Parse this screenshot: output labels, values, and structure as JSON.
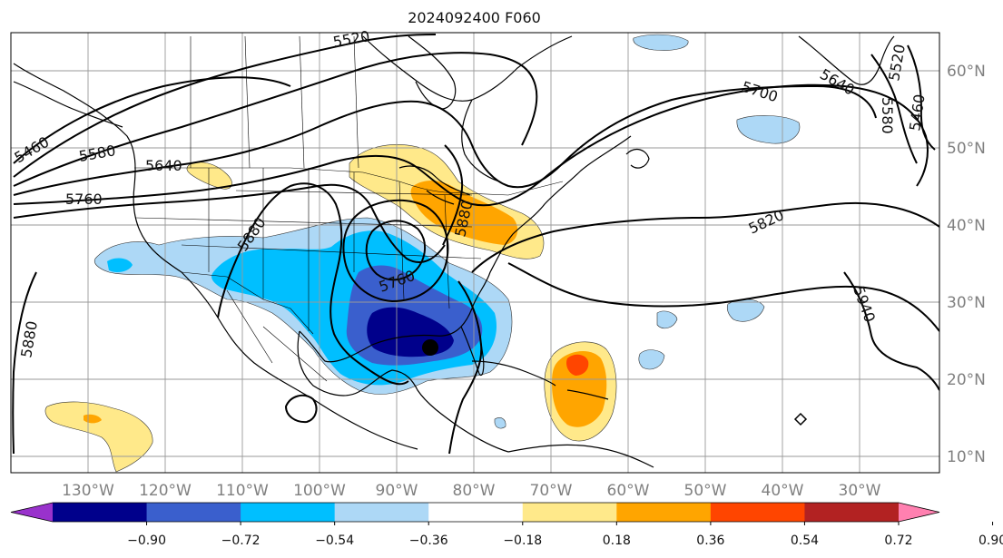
{
  "title": "2024092400 F060",
  "lat_labels": [
    "60°N",
    "50°N",
    "40°N",
    "30°N",
    "20°N",
    "10°N"
  ],
  "lon_labels": [
    "130°W",
    "120°W",
    "110°W",
    "100°W",
    "90°W",
    "80°W",
    "70°W",
    "60°W",
    "50°W",
    "40°W",
    "30°W"
  ],
  "contour_labels": [
    "5520",
    "5700",
    "5640",
    "5580",
    "5520",
    "5460",
    "5460",
    "5580",
    "5640",
    "5760",
    "5880",
    "5820",
    "5880",
    "5880",
    "5760",
    "5940"
  ],
  "colorbar": {
    "colors": [
      "#9932cc",
      "#00008b",
      "#3a5fcd",
      "#00bfff",
      "#add8f6",
      "#ffffff",
      "#ffe98a",
      "#ffa500",
      "#ff4500",
      "#b22222",
      "#ff80b0"
    ],
    "tick_labels": [
      "−0.90",
      "−0.72",
      "−0.54",
      "−0.36",
      "−0.18",
      "0.18",
      "0.36",
      "0.54",
      "0.72",
      "0.90"
    ]
  }
}
